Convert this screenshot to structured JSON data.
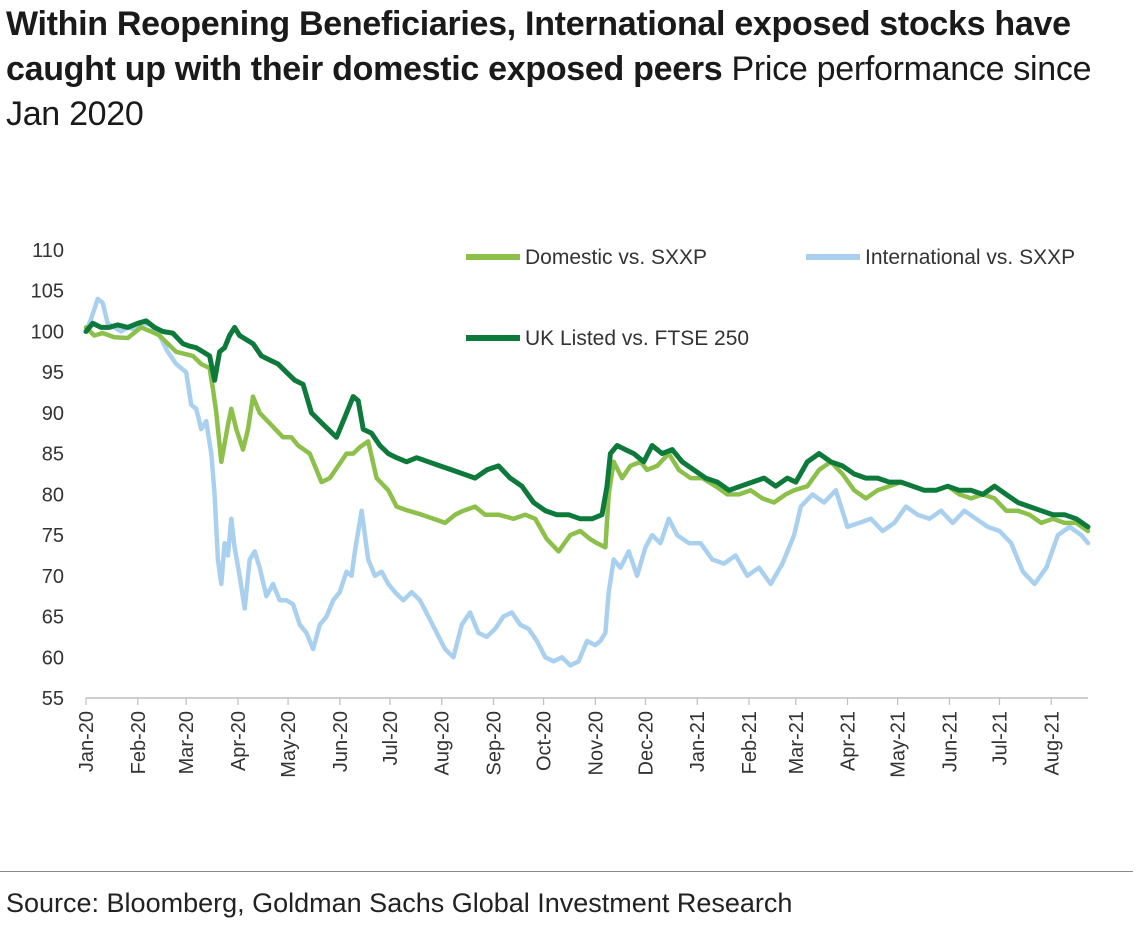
{
  "header": {
    "title": "Within Reopening Beneficiaries, International exposed stocks have caught up with their domestic exposed peers",
    "subtitle": "Price performance since Jan 2020"
  },
  "footer": {
    "source": "Source: Bloomberg, Goldman Sachs Global Investment Research"
  },
  "colors": {
    "domestic": "#8cc04a",
    "international": "#a9d0ee",
    "uk_listed": "#0d7a3c",
    "axis": "#bfbfbf"
  },
  "chart_data": {
    "type": "line",
    "title": "Within Reopening Beneficiaries, International exposed stocks have caught up with their domestic exposed peers",
    "subtitle": "Price performance since Jan 2020",
    "xlabel": "",
    "ylabel": "",
    "ylim": [
      55,
      110
    ],
    "yticks": [
      55,
      60,
      65,
      70,
      75,
      80,
      85,
      90,
      95,
      100,
      105,
      110
    ],
    "xlim": [
      "2020-01-01",
      "2021-08-23"
    ],
    "xticks": [
      "2020-01-01",
      "2020-02-01",
      "2020-03-01",
      "2020-04-01",
      "2020-05-01",
      "2020-06-01",
      "2020-07-01",
      "2020-08-01",
      "2020-09-01",
      "2020-10-01",
      "2020-11-01",
      "2020-12-01",
      "2021-01-01",
      "2021-02-01",
      "2021-03-01",
      "2021-04-01",
      "2021-05-01",
      "2021-06-01",
      "2021-07-01",
      "2021-08-01"
    ],
    "xticklabels": [
      "Jan-20",
      "Feb-20",
      "Mar-20",
      "Apr-20",
      "May-20",
      "Jun-20",
      "Jul-20",
      "Aug-20",
      "Sep-20",
      "Oct-20",
      "Nov-20",
      "Dec-20",
      "Jan-21",
      "Feb-21",
      "Mar-21",
      "Apr-21",
      "May-21",
      "Jun-21",
      "Jul-21",
      "Aug-21"
    ],
    "grid": false,
    "legend": "top-right",
    "series": [
      {
        "name": "Domestic vs. SXXP",
        "color": "#8cc04a",
        "x": [
          "2020-01-01",
          "2020-01-06",
          "2020-01-11",
          "2020-01-18",
          "2020-01-26",
          "2020-02-03",
          "2020-02-09",
          "2020-02-14",
          "2020-02-24",
          "2020-03-05",
          "2020-03-10",
          "2020-03-15",
          "2020-03-17",
          "2020-03-19",
          "2020-03-22",
          "2020-03-26",
          "2020-03-28",
          "2020-03-31",
          "2020-04-04",
          "2020-04-07",
          "2020-04-10",
          "2020-04-14",
          "2020-04-21",
          "2020-04-28",
          "2020-05-03",
          "2020-05-07",
          "2020-05-14",
          "2020-05-21",
          "2020-05-26",
          "2020-05-31",
          "2020-06-05",
          "2020-06-09",
          "2020-06-13",
          "2020-06-18",
          "2020-06-23",
          "2020-06-30",
          "2020-07-05",
          "2020-07-12",
          "2020-07-20",
          "2020-07-27",
          "2020-08-03",
          "2020-08-09",
          "2020-08-14",
          "2020-08-21",
          "2020-08-27",
          "2020-09-04",
          "2020-09-13",
          "2020-09-20",
          "2020-09-26",
          "2020-10-03",
          "2020-10-10",
          "2020-10-17",
          "2020-10-23",
          "2020-10-29",
          "2020-11-02",
          "2020-11-07",
          "2020-11-09",
          "2020-11-12",
          "2020-11-17",
          "2020-11-22",
          "2020-11-28",
          "2020-12-02",
          "2020-12-08",
          "2020-12-15",
          "2020-12-21",
          "2020-12-28",
          "2021-01-04",
          "2021-01-12",
          "2021-01-19",
          "2021-01-26",
          "2021-02-02",
          "2021-02-09",
          "2021-02-16",
          "2021-02-23",
          "2021-02-28",
          "2021-03-08",
          "2021-03-15",
          "2021-03-22",
          "2021-03-29",
          "2021-04-05",
          "2021-04-12",
          "2021-04-19",
          "2021-04-26",
          "2021-05-03",
          "2021-05-10",
          "2021-05-17",
          "2021-05-24",
          "2021-05-31",
          "2021-06-07",
          "2021-06-14",
          "2021-06-21",
          "2021-06-28",
          "2021-07-05",
          "2021-07-12",
          "2021-07-19",
          "2021-07-26",
          "2021-08-02",
          "2021-08-09",
          "2021-08-16",
          "2021-08-23"
        ],
        "y": [
          100.5,
          99.5,
          99.8,
          99.3,
          99.2,
          100.5,
          100.0,
          99.5,
          97.5,
          97.0,
          96.0,
          95.5,
          93.0,
          90.0,
          84.0,
          88.5,
          90.5,
          88.0,
          85.5,
          88.0,
          92.0,
          90.0,
          88.5,
          87.0,
          87.0,
          86.0,
          85.0,
          81.5,
          82.0,
          83.5,
          85.0,
          85.0,
          85.8,
          86.5,
          82.0,
          80.5,
          78.5,
          78.0,
          77.5,
          77.0,
          76.5,
          77.5,
          78.0,
          78.5,
          77.5,
          77.5,
          77.0,
          77.5,
          77.0,
          74.5,
          73.0,
          75.0,
          75.5,
          74.5,
          74.0,
          73.5,
          80.0,
          84.0,
          82.0,
          83.5,
          84.0,
          83.0,
          83.5,
          85.0,
          83.0,
          82.0,
          82.0,
          81.0,
          80.0,
          80.0,
          80.5,
          79.5,
          79.0,
          80.0,
          80.5,
          81.0,
          83.0,
          84.0,
          82.5,
          80.5,
          79.5,
          80.5,
          81.0,
          81.5,
          81.0,
          80.5,
          80.5,
          81.0,
          80.0,
          79.5,
          80.0,
          79.5,
          78.0,
          78.0,
          77.5,
          76.5,
          77.0,
          76.5,
          76.5,
          75.5
        ]
      },
      {
        "name": "International vs. SXXP",
        "color": "#a9d0ee",
        "x": [
          "2020-01-01",
          "2020-01-04",
          "2020-01-08",
          "2020-01-11",
          "2020-01-14",
          "2020-01-18",
          "2020-01-22",
          "2020-01-26",
          "2020-01-30",
          "2020-02-04",
          "2020-02-09",
          "2020-02-14",
          "2020-02-19",
          "2020-02-24",
          "2020-03-01",
          "2020-03-04",
          "2020-03-07",
          "2020-03-10",
          "2020-03-13",
          "2020-03-16",
          "2020-03-18",
          "2020-03-20",
          "2020-03-22",
          "2020-03-24",
          "2020-03-26",
          "2020-03-28",
          "2020-03-30",
          "2020-04-02",
          "2020-04-05",
          "2020-04-08",
          "2020-04-11",
          "2020-04-14",
          "2020-04-18",
          "2020-04-22",
          "2020-04-26",
          "2020-04-30",
          "2020-05-04",
          "2020-05-08",
          "2020-05-12",
          "2020-05-16",
          "2020-05-20",
          "2020-05-24",
          "2020-05-28",
          "2020-06-01",
          "2020-06-05",
          "2020-06-08",
          "2020-06-10",
          "2020-06-14",
          "2020-06-18",
          "2020-06-22",
          "2020-06-26",
          "2020-06-30",
          "2020-07-04",
          "2020-07-09",
          "2020-07-14",
          "2020-07-19",
          "2020-07-24",
          "2020-07-29",
          "2020-08-03",
          "2020-08-08",
          "2020-08-13",
          "2020-08-18",
          "2020-08-23",
          "2020-08-28",
          "2020-09-02",
          "2020-09-07",
          "2020-09-12",
          "2020-09-17",
          "2020-09-22",
          "2020-09-27",
          "2020-10-02",
          "2020-10-07",
          "2020-10-12",
          "2020-10-17",
          "2020-10-22",
          "2020-10-27",
          "2020-11-01",
          "2020-11-04",
          "2020-11-07",
          "2020-11-09",
          "2020-11-12",
          "2020-11-16",
          "2020-11-21",
          "2020-11-26",
          "2020-12-01",
          "2020-12-05",
          "2020-12-10",
          "2020-12-15",
          "2020-12-20",
          "2020-12-27",
          "2021-01-03",
          "2021-01-10",
          "2021-01-17",
          "2021-01-24",
          "2021-01-31",
          "2021-02-07",
          "2021-02-14",
          "2021-02-21",
          "2021-02-28",
          "2021-03-04",
          "2021-03-11",
          "2021-03-18",
          "2021-03-25",
          "2021-04-01",
          "2021-04-08",
          "2021-04-15",
          "2021-04-22",
          "2021-04-29",
          "2021-05-06",
          "2021-05-13",
          "2021-05-20",
          "2021-05-27",
          "2021-06-03",
          "2021-06-10",
          "2021-06-17",
          "2021-06-24",
          "2021-07-01",
          "2021-07-08",
          "2021-07-15",
          "2021-07-22",
          "2021-07-29",
          "2021-08-05",
          "2021-08-12",
          "2021-08-19",
          "2021-08-23"
        ],
        "y": [
          100.0,
          101.5,
          104.0,
          103.5,
          101.0,
          100.5,
          100.0,
          100.5,
          100.2,
          101.0,
          100.8,
          99.5,
          97.5,
          96.0,
          95.0,
          91.0,
          90.5,
          88.0,
          89.0,
          85.0,
          80.0,
          72.0,
          69.0,
          74.0,
          72.5,
          77.0,
          73.5,
          70.0,
          66.0,
          72.0,
          73.0,
          71.0,
          67.5,
          69.0,
          67.0,
          67.0,
          66.5,
          64.0,
          63.0,
          61.0,
          64.0,
          65.0,
          67.0,
          68.0,
          70.5,
          70.0,
          73.0,
          78.0,
          72.0,
          70.0,
          70.5,
          69.0,
          68.0,
          67.0,
          68.0,
          67.0,
          65.0,
          63.0,
          61.0,
          60.0,
          64.0,
          65.5,
          63.0,
          62.5,
          63.5,
          65.0,
          65.5,
          64.0,
          63.5,
          62.0,
          60.0,
          59.5,
          60.0,
          59.0,
          59.5,
          62.0,
          61.5,
          62.0,
          63.0,
          68.0,
          72.0,
          71.0,
          73.0,
          70.0,
          73.5,
          75.0,
          74.0,
          77.0,
          75.0,
          74.0,
          74.0,
          72.0,
          71.5,
          72.5,
          70.0,
          71.0,
          69.0,
          71.5,
          75.0,
          78.5,
          80.0,
          79.0,
          80.5,
          76.0,
          76.5,
          77.0,
          75.5,
          76.5,
          78.5,
          77.5,
          77.0,
          78.0,
          76.5,
          78.0,
          77.0,
          76.0,
          75.5,
          74.0,
          70.5,
          69.0,
          71.0,
          75.0,
          76.0,
          75.0,
          74.0
        ]
      },
      {
        "name": "UK Listed vs. FTSE 250",
        "color": "#0d7a3c",
        "x": [
          "2020-01-01",
          "2020-01-05",
          "2020-01-10",
          "2020-01-15",
          "2020-01-20",
          "2020-01-26",
          "2020-02-01",
          "2020-02-06",
          "2020-02-11",
          "2020-02-16",
          "2020-02-22",
          "2020-02-28",
          "2020-03-03",
          "2020-03-07",
          "2020-03-11",
          "2020-03-15",
          "2020-03-18",
          "2020-03-21",
          "2020-03-24",
          "2020-03-27",
          "2020-03-30",
          "2020-04-02",
          "2020-04-06",
          "2020-04-10",
          "2020-04-15",
          "2020-04-20",
          "2020-04-25",
          "2020-04-30",
          "2020-05-05",
          "2020-05-10",
          "2020-05-15",
          "2020-05-20",
          "2020-05-25",
          "2020-05-30",
          "2020-06-04",
          "2020-06-09",
          "2020-06-12",
          "2020-06-15",
          "2020-06-20",
          "2020-06-25",
          "2020-06-30",
          "2020-07-05",
          "2020-07-11",
          "2020-07-17",
          "2020-07-24",
          "2020-07-31",
          "2020-08-07",
          "2020-08-14",
          "2020-08-21",
          "2020-08-28",
          "2020-09-04",
          "2020-09-11",
          "2020-09-18",
          "2020-09-25",
          "2020-10-02",
          "2020-10-09",
          "2020-10-16",
          "2020-10-23",
          "2020-10-30",
          "2020-11-05",
          "2020-11-08",
          "2020-11-10",
          "2020-11-14",
          "2020-11-19",
          "2020-11-24",
          "2020-11-30",
          "2020-12-05",
          "2020-12-11",
          "2020-12-17",
          "2020-12-23",
          "2020-12-30",
          "2021-01-06",
          "2021-01-13",
          "2021-01-20",
          "2021-01-27",
          "2021-02-03",
          "2021-02-10",
          "2021-02-17",
          "2021-02-24",
          "2021-03-01",
          "2021-03-08",
          "2021-03-15",
          "2021-03-22",
          "2021-03-29",
          "2021-04-05",
          "2021-04-12",
          "2021-04-19",
          "2021-04-26",
          "2021-05-03",
          "2021-05-10",
          "2021-05-17",
          "2021-05-24",
          "2021-05-31",
          "2021-06-07",
          "2021-06-14",
          "2021-06-21",
          "2021-06-28",
          "2021-07-05",
          "2021-07-12",
          "2021-07-19",
          "2021-07-26",
          "2021-08-02",
          "2021-08-09",
          "2021-08-16",
          "2021-08-23"
        ],
        "y": [
          100.0,
          101.0,
          100.5,
          100.5,
          100.8,
          100.5,
          101.0,
          101.3,
          100.5,
          100.0,
          99.8,
          98.5,
          98.2,
          98.0,
          97.5,
          97.0,
          94.0,
          97.5,
          98.0,
          99.5,
          100.5,
          99.5,
          99.0,
          98.5,
          97.0,
          96.5,
          96.0,
          95.0,
          94.0,
          93.5,
          90.0,
          89.0,
          88.0,
          87.0,
          89.5,
          92.0,
          91.5,
          88.0,
          87.5,
          86.0,
          85.0,
          84.5,
          84.0,
          84.5,
          84.0,
          83.5,
          83.0,
          82.5,
          82.0,
          83.0,
          83.5,
          82.0,
          81.0,
          79.0,
          78.0,
          77.5,
          77.5,
          77.0,
          77.0,
          77.5,
          81.0,
          85.0,
          86.0,
          85.5,
          85.0,
          84.0,
          86.0,
          85.0,
          85.5,
          84.0,
          83.0,
          82.0,
          81.5,
          80.5,
          81.0,
          81.5,
          82.0,
          81.0,
          82.0,
          81.5,
          84.0,
          85.0,
          84.0,
          83.5,
          82.5,
          82.0,
          82.0,
          81.5,
          81.5,
          81.0,
          80.5,
          80.5,
          81.0,
          80.5,
          80.5,
          80.0,
          81.0,
          80.0,
          79.0,
          78.5,
          78.0,
          77.5,
          77.5,
          77.0,
          76.0
        ]
      }
    ]
  }
}
